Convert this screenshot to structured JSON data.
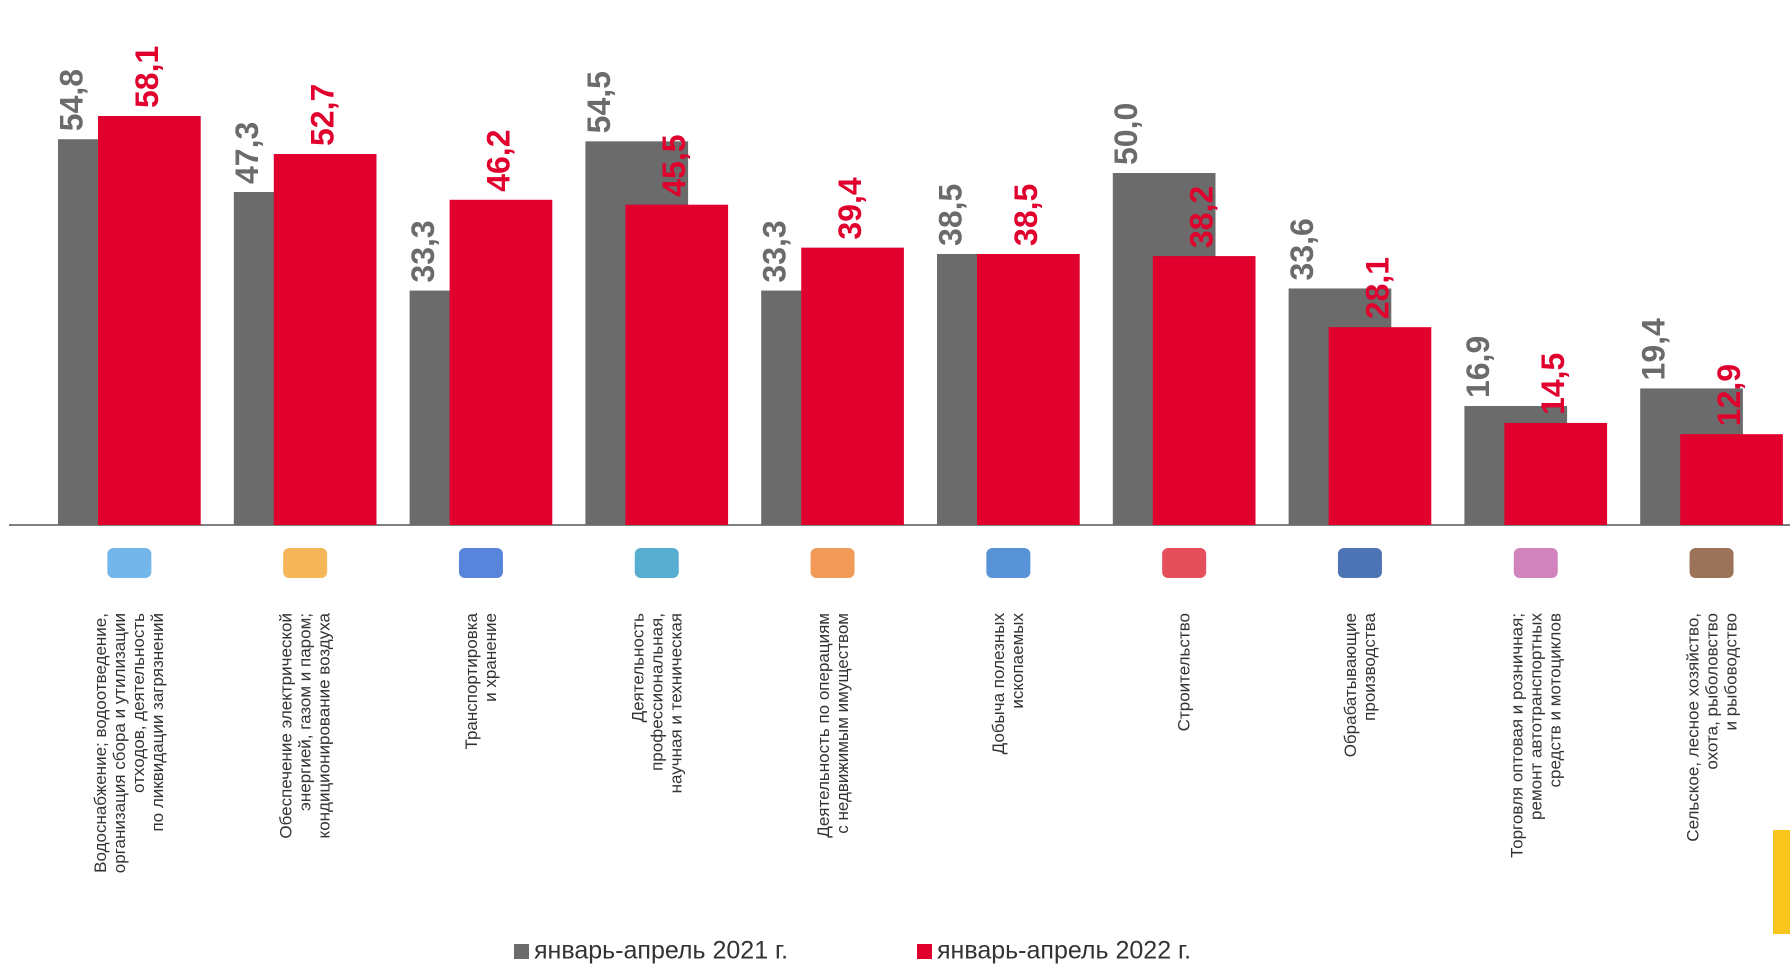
{
  "chart_data": {
    "type": "bar",
    "categories": [
      "Водоснабжение; водоотведение,\nорганизация сбора и утилизации\nотходов, деятельность\nпо ликвидации загрязнений",
      "Обеспечение электрической\nэнергией, газом и паром;\nкондиционирование воздуха",
      "Транспортировка\nи хранение",
      "Деятельность\nпрофессиональная,\nнаучная и техническая",
      "Деятельность по операциям\nс недвижимым имуществом",
      "Добыча полезных\nископаемых",
      "Строительство",
      "Обрабатывающие\nпроизводства",
      "Торговля оптовая и розничная;\nремонт автотранспортных\nсредств и мотоциклов",
      "Сельское, лесное хозяйство,\nохота, рыболовство\nи рыбоводство"
    ],
    "series": [
      {
        "name": "январь-апрель 2021 г.",
        "color": "#6b6b6b",
        "values": [
          54.8,
          47.3,
          33.3,
          54.5,
          33.3,
          38.5,
          50.0,
          33.6,
          16.9,
          19.4
        ],
        "value_labels": [
          "54,8",
          "47,3",
          "33,3",
          "54,5",
          "33,3",
          "38,5",
          "50,0",
          "33,6",
          "16,9",
          "19,4"
        ]
      },
      {
        "name": "январь-апрель 2022 г.",
        "color": "#e1002d",
        "values": [
          58.1,
          52.7,
          46.2,
          45.5,
          39.4,
          38.5,
          38.2,
          28.1,
          14.5,
          12.9
        ],
        "value_labels": [
          "58,1",
          "52,7",
          "46,2",
          "45,5",
          "39,4",
          "38,5",
          "38,2",
          "28,1",
          "14,5",
          "12,9"
        ]
      }
    ]
  }
}
